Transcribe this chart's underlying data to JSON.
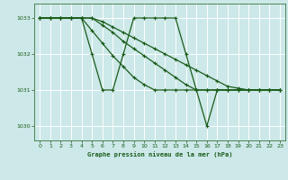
{
  "bg_color": "#cce8e8",
  "grid_color": "#ffffff",
  "line_color": "#1a5c1a",
  "title": "Graphe pression niveau de la mer (hPa)",
  "xlim": [
    -0.5,
    23.5
  ],
  "ylim": [
    1029.6,
    1033.4
  ],
  "yticks": [
    1030,
    1031,
    1032,
    1033
  ],
  "xticks": [
    0,
    1,
    2,
    3,
    4,
    5,
    6,
    7,
    8,
    9,
    10,
    11,
    12,
    13,
    14,
    15,
    16,
    17,
    18,
    19,
    20,
    21,
    22,
    23
  ],
  "series1_x": [
    0,
    1,
    2,
    3,
    4,
    5,
    6,
    7,
    8,
    9,
    10,
    11,
    12,
    13,
    14,
    15,
    16,
    17,
    18,
    19,
    20,
    21,
    22,
    23
  ],
  "series1_y": [
    1033,
    1033,
    1033,
    1033,
    1033,
    1032,
    1031,
    1031,
    1032,
    1033,
    1033,
    1033,
    1033,
    1033,
    1032,
    1031,
    1030,
    1031,
    1031,
    1031,
    1031,
    1031,
    1031,
    1031
  ],
  "series2_x": [
    0,
    1,
    2,
    3,
    4,
    5,
    6,
    7,
    8,
    9,
    10,
    11,
    12,
    13,
    14,
    15,
    16,
    17,
    18,
    19,
    20,
    21,
    22,
    23
  ],
  "series2_y": [
    1033,
    1033,
    1033,
    1033,
    1033,
    1033,
    1032.8,
    1032.6,
    1032.35,
    1032.15,
    1031.95,
    1031.75,
    1031.55,
    1031.35,
    1031.15,
    1031.0,
    1031.0,
    1031.0,
    1031.0,
    1031.0,
    1031.0,
    1031.0,
    1031.0,
    1031.0
  ],
  "series3_x": [
    0,
    1,
    2,
    3,
    4,
    5,
    6,
    7,
    8,
    9,
    10,
    11,
    12,
    13,
    14,
    15,
    16,
    17,
    18,
    19,
    20,
    21,
    22,
    23
  ],
  "series3_y": [
    1033,
    1033,
    1033,
    1033,
    1033,
    1032.65,
    1032.3,
    1031.95,
    1031.65,
    1031.35,
    1031.15,
    1031.0,
    1031.0,
    1031.0,
    1031.0,
    1031.0,
    1031.0,
    1031.0,
    1031.0,
    1031.0,
    1031.0,
    1031.0,
    1031.0,
    1031.0
  ],
  "series4_x": [
    0,
    1,
    2,
    3,
    4,
    5,
    6,
    7,
    8,
    9,
    10,
    11,
    12,
    13,
    14,
    15,
    16,
    17,
    18,
    19,
    20,
    21,
    22,
    23
  ],
  "series4_y": [
    1033,
    1033,
    1033,
    1033,
    1033,
    1033,
    1032.9,
    1032.75,
    1032.6,
    1032.45,
    1032.3,
    1032.15,
    1032.0,
    1031.85,
    1031.7,
    1031.55,
    1031.4,
    1031.25,
    1031.1,
    1031.05,
    1031.0,
    1031.0,
    1031.0,
    1031.0
  ],
  "marker": "+",
  "markersize": 3.5,
  "markeredgewidth": 0.8,
  "linewidth": 0.9
}
